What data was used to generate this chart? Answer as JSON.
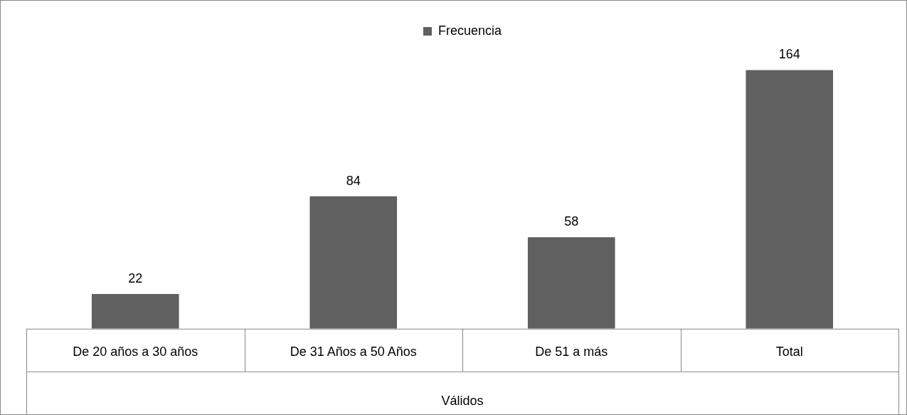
{
  "chart_data": {
    "type": "bar",
    "xlabel": "Válidos",
    "categories": [
      "De 20 años a 30 años",
      "De 31 Años a 50 Años",
      "De 51 a más",
      "Total"
    ],
    "series": [
      {
        "name": "Frecuencia",
        "color": "#606060",
        "values": [
          22,
          84,
          58,
          164
        ]
      }
    ],
    "data_labels": true,
    "legend": "top",
    "grid": false
  }
}
